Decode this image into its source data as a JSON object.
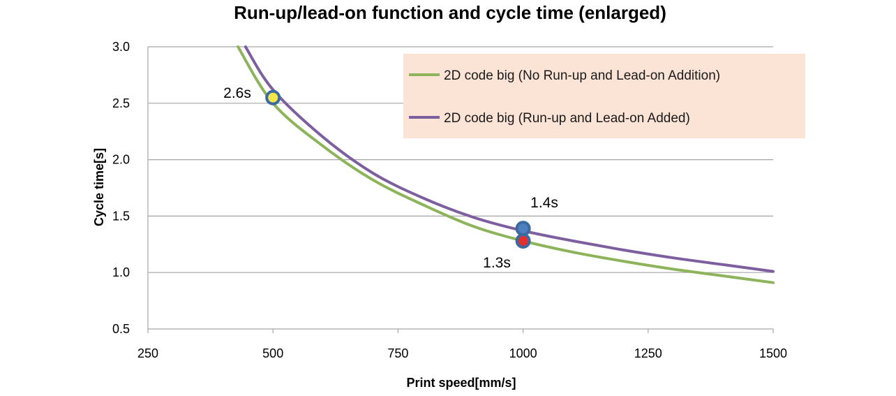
{
  "chart_data": {
    "type": "line",
    "title": "Run-up/lead-on function and cycle time (enlarged)",
    "xlabel": "Print speed[mm/s]",
    "ylabel": "Cycle time[s]",
    "xlim": [
      250,
      1500
    ],
    "ylim": [
      0.5,
      3.0
    ],
    "xticks": [
      {
        "value": 250,
        "label": "250"
      },
      {
        "value": 500,
        "label": "500"
      },
      {
        "value": 750,
        "label": "750"
      },
      {
        "value": 1000,
        "label": "1000"
      },
      {
        "value": 1250,
        "label": "1250"
      },
      {
        "value": 1500,
        "label": "1500"
      }
    ],
    "yticks": [
      {
        "value": 0.5,
        "label": "0.5"
      },
      {
        "value": 1.0,
        "label": "1.0"
      },
      {
        "value": 1.5,
        "label": "1.5"
      },
      {
        "value": 2.0,
        "label": "2.0"
      },
      {
        "value": 2.5,
        "label": "2.5"
      },
      {
        "value": 3.0,
        "label": "3.0"
      }
    ],
    "grid": "horizontal",
    "legend_position": "top-right",
    "series": [
      {
        "name": "2D code big (No Run-up and Lead-on Addition)",
        "color": "#8db45a",
        "x": [
          430,
          500,
          600,
          700,
          800,
          900,
          1000,
          1100,
          1200,
          1300,
          1400,
          1500
        ],
        "y": [
          3.0,
          2.5,
          2.12,
          1.82,
          1.6,
          1.41,
          1.28,
          1.18,
          1.1,
          1.03,
          0.97,
          0.91
        ]
      },
      {
        "name": "2D code big (Run-up and Lead-on Added)",
        "color": "#7d5fa0",
        "x": [
          445,
          500,
          600,
          700,
          800,
          900,
          1000,
          1100,
          1200,
          1300,
          1400,
          1500
        ],
        "y": [
          3.0,
          2.62,
          2.2,
          1.88,
          1.66,
          1.49,
          1.37,
          1.28,
          1.2,
          1.13,
          1.07,
          1.01
        ]
      }
    ],
    "markers": [
      {
        "name": "point-500",
        "x": 500,
        "y": 2.55,
        "fill": "#f2e84a",
        "stroke": "#3b6aa0"
      },
      {
        "name": "point-1000-added",
        "x": 1000,
        "y": 1.39,
        "fill": "#4f7fbf",
        "stroke": "#3b6aa0"
      },
      {
        "name": "point-1000-none",
        "x": 1000,
        "y": 1.28,
        "fill": "#e03030",
        "stroke": "#3b6aa0"
      }
    ],
    "annotations": [
      {
        "name": "annotation-2-6s",
        "text": "2.6s"
      },
      {
        "name": "annotation-1-4s",
        "text": "1.4s"
      },
      {
        "name": "annotation-1-3s",
        "text": "1.3s"
      }
    ],
    "legend_background": "#fbe3d5"
  }
}
